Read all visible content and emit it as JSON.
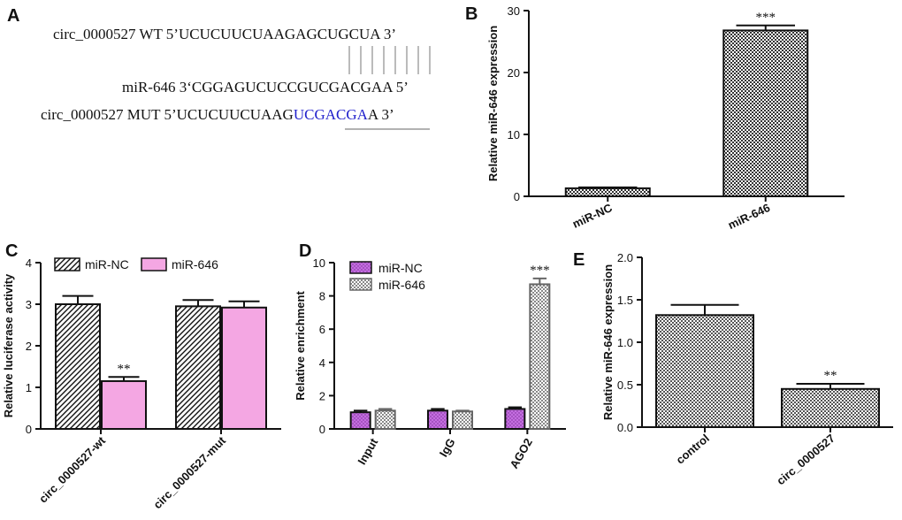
{
  "panel_a": {
    "label": "A",
    "wt": {
      "prefix": "circ_0000527 WT 5’UCUCUUCUAAGAGCUGCUA 3’"
    },
    "mir": {
      "prefix": "miR-646 3‘CGGAGUCUCCGUCGACGAA 5’"
    },
    "mut": {
      "prefix": "circ_0000527 MUT 5’UCUCUUCUAAG",
      "mutated": "UCGACGA",
      "suffix": "A 3’"
    }
  },
  "chart_data": [
    {
      "panel": "B",
      "type": "bar",
      "categories": [
        "miR-NC",
        "miR-646"
      ],
      "values": [
        1.3,
        26.8
      ],
      "errors": [
        0.15,
        0.8
      ],
      "significance": [
        "",
        "***"
      ],
      "ylabel": "Relative miR-646 expression",
      "ylim": [
        0,
        30
      ],
      "yticks": [
        0,
        10,
        20,
        30
      ],
      "fill_color": "#bbbbbb"
    },
    {
      "panel": "C",
      "type": "bar",
      "categories": [
        "circ_0000527-wt",
        "circ_0000527-mut"
      ],
      "series": [
        {
          "name": "miR-NC",
          "values": [
            3.0,
            2.95
          ],
          "errors": [
            0.2,
            0.15
          ],
          "significance": [
            "",
            ""
          ],
          "color": "#ffffff"
        },
        {
          "name": "miR-646",
          "values": [
            1.15,
            2.92
          ],
          "errors": [
            0.1,
            0.15
          ],
          "significance": [
            "**",
            ""
          ],
          "color": "#f4a7e3"
        }
      ],
      "ylabel": "Relative luciferase activity",
      "ylim": [
        0,
        4
      ],
      "yticks": [
        0,
        1,
        2,
        3,
        4
      ]
    },
    {
      "panel": "D",
      "type": "bar",
      "categories": [
        "Input",
        "IgG",
        "AGO2"
      ],
      "series": [
        {
          "name": "miR-NC",
          "values": [
            1.0,
            1.1,
            1.2
          ],
          "errors": [
            0.1,
            0.1,
            0.1
          ],
          "significance": [
            "",
            "",
            ""
          ],
          "color": "#b44fd6"
        },
        {
          "name": "miR-646",
          "values": [
            1.1,
            1.05,
            8.7
          ],
          "errors": [
            0.1,
            0.05,
            0.35
          ],
          "significance": [
            "",
            "",
            "***"
          ],
          "color": "#999999"
        }
      ],
      "ylabel": "Relative enrichment",
      "ylim": [
        0,
        10
      ],
      "yticks": [
        0,
        2,
        4,
        6,
        8,
        10
      ]
    },
    {
      "panel": "E",
      "type": "bar",
      "categories": [
        "control",
        "circ_0000527"
      ],
      "values": [
        1.32,
        0.45
      ],
      "errors": [
        0.12,
        0.06
      ],
      "significance": [
        "",
        "**"
      ],
      "ylabel": "Relative miR-646 expression",
      "ylim": [
        0,
        2.0
      ],
      "yticks": [
        "0.0",
        "0.5",
        "1.0",
        "1.5",
        "2.0"
      ],
      "fill_color": "#e5e5e5"
    }
  ]
}
